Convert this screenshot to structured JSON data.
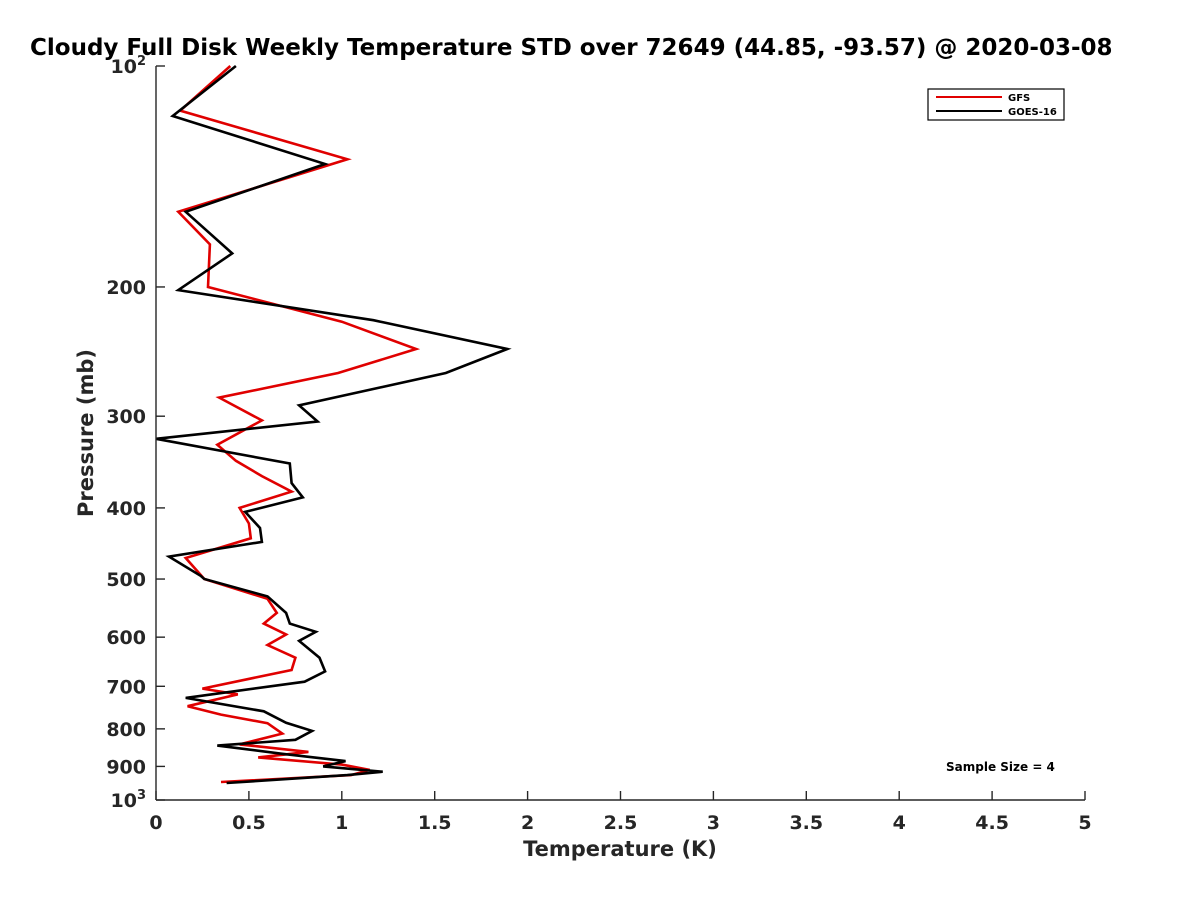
{
  "chart_data": {
    "type": "line",
    "title": "Cloudy Full Disk Weekly Temperature STD over 72649 (44.85, -93.57) @ 2020-03-08",
    "xlabel": "Temperature (K)",
    "ylabel": "Pressure (mb)",
    "xlim": [
      0,
      5
    ],
    "ylim": [
      100,
      1000
    ],
    "yscale": "log",
    "y_reversed": true,
    "x_ticks": [
      0,
      0.5,
      1,
      1.5,
      2,
      2.5,
      3,
      3.5,
      4,
      4.5,
      5
    ],
    "x_tick_labels": [
      "0",
      "0.5",
      "1",
      "1.5",
      "2",
      "2.5",
      "3",
      "3.5",
      "4",
      "4.5",
      "5"
    ],
    "y_ticks": [
      100,
      200,
      300,
      400,
      500,
      600,
      700,
      800,
      900,
      1000
    ],
    "y_tick_labels": [
      {
        "base": "10",
        "exp": "2"
      },
      {
        "base": "200",
        "exp": ""
      },
      {
        "base": "300",
        "exp": ""
      },
      {
        "base": "400",
        "exp": ""
      },
      {
        "base": "500",
        "exp": ""
      },
      {
        "base": "600",
        "exp": ""
      },
      {
        "base": "700",
        "exp": ""
      },
      {
        "base": "800",
        "exp": ""
      },
      {
        "base": "900",
        "exp": ""
      },
      {
        "base": "10",
        "exp": "3"
      }
    ],
    "grid": false,
    "legend_position": "top-right",
    "annotation": "Sample Size = 4",
    "series": [
      {
        "name": "GFS",
        "color": "#e00000",
        "points": [
          [
            0.4,
            100
          ],
          [
            0.13,
            115
          ],
          [
            1.03,
            134
          ],
          [
            0.12,
            158
          ],
          [
            0.29,
            175
          ],
          [
            0.28,
            200
          ],
          [
            1.0,
            223
          ],
          [
            1.4,
            243
          ],
          [
            0.98,
            262
          ],
          [
            0.34,
            283
          ],
          [
            0.57,
            304
          ],
          [
            0.33,
            328
          ],
          [
            0.43,
            345
          ],
          [
            0.57,
            362
          ],
          [
            0.73,
            380
          ],
          [
            0.45,
            400
          ],
          [
            0.5,
            420
          ],
          [
            0.51,
            440
          ],
          [
            0.16,
            468
          ],
          [
            0.26,
            500
          ],
          [
            0.6,
            532
          ],
          [
            0.65,
            556
          ],
          [
            0.58,
            575
          ],
          [
            0.7,
            595
          ],
          [
            0.6,
            615
          ],
          [
            0.75,
            640
          ],
          [
            0.73,
            665
          ],
          [
            0.25,
            705
          ],
          [
            0.44,
            718
          ],
          [
            0.17,
            745
          ],
          [
            0.35,
            765
          ],
          [
            0.6,
            786
          ],
          [
            0.68,
            812
          ],
          [
            0.45,
            840
          ],
          [
            0.82,
            860
          ],
          [
            0.55,
            875
          ],
          [
            1.0,
            895
          ],
          [
            1.15,
            910
          ],
          [
            1.05,
            925
          ],
          [
            0.35,
            945
          ]
        ]
      },
      {
        "name": "GOES-16",
        "color": "#000000",
        "points": [
          [
            0.43,
            100
          ],
          [
            0.09,
            117
          ],
          [
            0.91,
            136
          ],
          [
            0.16,
            158
          ],
          [
            0.41,
            180
          ],
          [
            0.12,
            202
          ],
          [
            1.17,
            222
          ],
          [
            1.89,
            243
          ],
          [
            1.56,
            262
          ],
          [
            0.77,
            290
          ],
          [
            0.87,
            305
          ],
          [
            0.0,
            322
          ],
          [
            0.72,
            348
          ],
          [
            0.73,
            370
          ],
          [
            0.79,
            387
          ],
          [
            0.48,
            405
          ],
          [
            0.56,
            426
          ],
          [
            0.57,
            445
          ],
          [
            0.07,
            466
          ],
          [
            0.24,
            495
          ],
          [
            0.26,
            500
          ],
          [
            0.6,
            528
          ],
          [
            0.7,
            556
          ],
          [
            0.72,
            575
          ],
          [
            0.86,
            590
          ],
          [
            0.77,
            607
          ],
          [
            0.88,
            640
          ],
          [
            0.91,
            668
          ],
          [
            0.8,
            690
          ],
          [
            0.16,
            726
          ],
          [
            0.58,
            757
          ],
          [
            0.7,
            785
          ],
          [
            0.84,
            805
          ],
          [
            0.75,
            828
          ],
          [
            0.33,
            843
          ],
          [
            0.68,
            865
          ],
          [
            1.02,
            885
          ],
          [
            0.9,
            900
          ],
          [
            1.22,
            915
          ],
          [
            1.03,
            925
          ],
          [
            0.38,
            948
          ]
        ]
      }
    ]
  }
}
